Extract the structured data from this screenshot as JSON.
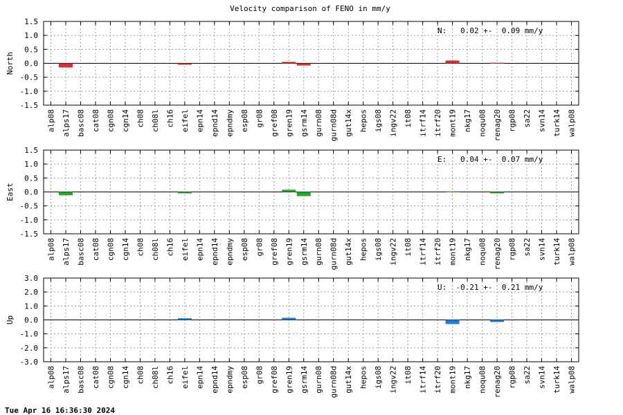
{
  "title": "Velocity comparison of FENO in mm/y",
  "footer": "Tue Apr 16 16:36:30 2024",
  "chart_data": [
    {
      "type": "bar",
      "ylabel": "North",
      "annotation": "N:   0.02 +-  0.09 mm/y",
      "color": "#dd2c2c",
      "grid": true,
      "categories": [
        "alp08",
        "alps17",
        "basc08",
        "cat08",
        "cgn08",
        "cgn14",
        "ch08",
        "ch08l",
        "ch16",
        "eifel",
        "epn14",
        "epnd14",
        "epndmy",
        "esp08",
        "gr08",
        "gref08",
        "gren19",
        "gsrm14",
        "gurn08",
        "gurn08d",
        "gut14x",
        "hepos",
        "igs08",
        "ingv22",
        "it08",
        "itrf14",
        "itrf20",
        "mont19",
        "nkg17",
        "noqu08",
        "renag20",
        "rgp08",
        "sa22",
        "svn14",
        "turk14",
        "walp08"
      ],
      "values": [
        null,
        -0.15,
        null,
        null,
        null,
        null,
        null,
        null,
        null,
        -0.05,
        null,
        null,
        null,
        null,
        null,
        null,
        0.05,
        -0.08,
        null,
        null,
        null,
        null,
        null,
        null,
        null,
        null,
        null,
        0.1,
        null,
        null,
        0.02,
        null,
        null,
        null,
        null,
        null
      ],
      "ylim": [
        -1.5,
        1.5
      ],
      "yticks": [
        -1.5,
        {
          "value": -1,
          "label": "-1.0"
        },
        -0.5,
        {
          "value": 0,
          "label": "0.0"
        },
        0.5,
        {
          "value": 1,
          "label": "1.0"
        },
        1.5
      ]
    },
    {
      "type": "bar",
      "ylabel": "East",
      "annotation": "E:   0.04 +-  0.07 mm/y",
      "color": "#22aa22",
      "grid": true,
      "categories": [
        "alp08",
        "alps17",
        "basc08",
        "cat08",
        "cgn08",
        "cgn14",
        "ch08",
        "ch08l",
        "ch16",
        "eifel",
        "epn14",
        "epnd14",
        "epndmy",
        "esp08",
        "gr08",
        "gref08",
        "gren19",
        "gsrm14",
        "gurn08",
        "gurn08d",
        "gut14x",
        "hepos",
        "igs08",
        "ingv22",
        "it08",
        "itrf14",
        "itrf20",
        "mont19",
        "nkg17",
        "noqu08",
        "renag20",
        "rgp08",
        "sa22",
        "svn14",
        "turk14",
        "walp08"
      ],
      "values": [
        null,
        -0.12,
        null,
        null,
        null,
        null,
        null,
        null,
        null,
        -0.05,
        null,
        null,
        null,
        null,
        null,
        null,
        0.08,
        -0.15,
        null,
        null,
        null,
        null,
        null,
        null,
        null,
        null,
        null,
        0.02,
        null,
        null,
        -0.05,
        null,
        null,
        null,
        null,
        null
      ],
      "ylim": [
        -1.5,
        1.5
      ],
      "yticks": [
        -1.5,
        {
          "value": -1,
          "label": "-1.0"
        },
        -0.5,
        {
          "value": 0,
          "label": "0.0"
        },
        0.5,
        {
          "value": 1,
          "label": "1.0"
        },
        1.5
      ]
    },
    {
      "type": "bar",
      "ylabel": "Up",
      "annotation": "U:  -0.21 +-  0.21 mm/y",
      "color": "#1e7be0",
      "grid": true,
      "categories": [
        "alp08",
        "alps17",
        "basc08",
        "cat08",
        "cgn08",
        "cgn14",
        "ch08",
        "ch08l",
        "ch16",
        "eifel",
        "epn14",
        "epnd14",
        "epndmy",
        "esp08",
        "gr08",
        "gref08",
        "gren19",
        "gsrm14",
        "gurn08",
        "gurn08d",
        "gut14x",
        "hepos",
        "igs08",
        "ingv22",
        "it08",
        "itrf14",
        "itrf20",
        "mont19",
        "nkg17",
        "noqu08",
        "renag20",
        "rgp08",
        "sa22",
        "svn14",
        "turk14",
        "walp08"
      ],
      "values": [
        null,
        null,
        null,
        null,
        null,
        null,
        null,
        null,
        null,
        0.12,
        null,
        null,
        null,
        null,
        null,
        null,
        0.15,
        null,
        null,
        null,
        null,
        null,
        null,
        null,
        null,
        null,
        null,
        -0.3,
        null,
        null,
        -0.15,
        null,
        null,
        null,
        null,
        null
      ],
      "ylim": [
        -3,
        3
      ],
      "yticks": [
        {
          "value": -3,
          "label": "-3.0"
        },
        {
          "value": -2,
          "label": "-2.0"
        },
        {
          "value": -1,
          "label": "-1.0"
        },
        {
          "value": 0,
          "label": "0.0"
        },
        {
          "value": 1,
          "label": "1.0"
        },
        {
          "value": 2,
          "label": "2.0"
        },
        {
          "value": 3,
          "label": "3.0"
        }
      ]
    }
  ]
}
